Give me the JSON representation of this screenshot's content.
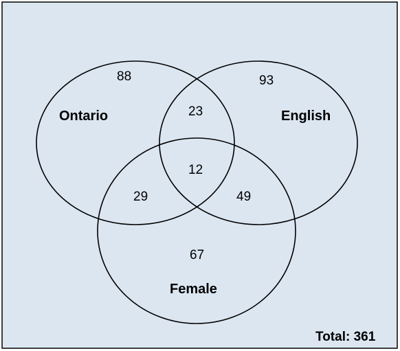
{
  "colors": {
    "background": "#dce6f1",
    "border": "#000000",
    "circle_stroke": "#000000"
  },
  "sets": {
    "ontario": "Ontario",
    "english": "English",
    "female": "Female"
  },
  "regions": {
    "ontario_only": "88",
    "english_only": "93",
    "female_only": "67",
    "ontario_english": "23",
    "ontario_female": "29",
    "english_female": "49",
    "all_three": "12"
  },
  "total": "Total: 361"
}
